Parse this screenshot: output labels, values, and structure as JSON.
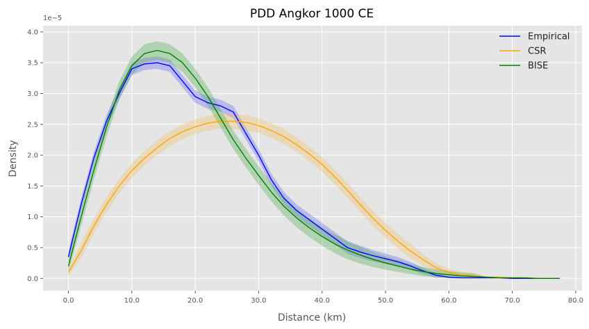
{
  "chart_data": {
    "type": "line",
    "title": "PDD Angkor 1000 CE",
    "xlabel": "Distance (km)",
    "ylabel": "Density",
    "y_offset_label": "1e−5",
    "xlim": [
      -4,
      81
    ],
    "ylim": [
      -0.2,
      4.1
    ],
    "x_ticks": [
      0,
      10,
      20,
      30,
      40,
      50,
      60,
      70,
      80
    ],
    "x_tick_labels": [
      "0.0",
      "10.0",
      "20.0",
      "30.0",
      "40.0",
      "50.0",
      "60.0",
      "70.0",
      "80.0"
    ],
    "y_ticks": [
      0.0,
      0.5,
      1.0,
      1.5,
      2.0,
      2.5,
      3.0,
      3.5,
      4.0
    ],
    "y_tick_labels": [
      "0.0",
      "0.5",
      "1.0",
      "1.5",
      "2.0",
      "2.5",
      "3.0",
      "3.5",
      "4.0"
    ],
    "grid": true,
    "legend_position": "top-right",
    "x": [
      0,
      2,
      4,
      6,
      8,
      10,
      12,
      14,
      16,
      18,
      20,
      22,
      24,
      26,
      28,
      30,
      32,
      34,
      36,
      38,
      40,
      42,
      44,
      46,
      48,
      50,
      52,
      54,
      56,
      58,
      60,
      62,
      64,
      66,
      68,
      70,
      72,
      74,
      76,
      77.5
    ],
    "series": [
      {
        "name": "Empirical",
        "color": "#0000ff",
        "band_color": "#6666ff",
        "values": [
          0.35,
          1.2,
          1.95,
          2.55,
          3.0,
          3.4,
          3.48,
          3.5,
          3.45,
          3.2,
          2.95,
          2.85,
          2.8,
          2.7,
          2.35,
          2.0,
          1.6,
          1.3,
          1.1,
          0.95,
          0.8,
          0.65,
          0.5,
          0.43,
          0.37,
          0.32,
          0.27,
          0.2,
          0.12,
          0.05,
          0.02,
          0.01,
          0.01,
          0.01,
          0.01,
          0.0,
          0.0,
          0.0,
          0.0,
          0.0
        ],
        "band": 0.1
      },
      {
        "name": "CSR",
        "color": "#ffa500",
        "band_color": "#f0c060",
        "values": [
          0.1,
          0.45,
          0.85,
          1.2,
          1.5,
          1.75,
          1.95,
          2.12,
          2.27,
          2.38,
          2.46,
          2.52,
          2.55,
          2.55,
          2.53,
          2.48,
          2.4,
          2.3,
          2.17,
          2.02,
          1.85,
          1.65,
          1.43,
          1.2,
          0.98,
          0.78,
          0.6,
          0.44,
          0.3,
          0.17,
          0.1,
          0.06,
          0.04,
          0.02,
          0.02,
          0.01,
          0.01,
          0.0,
          0.0,
          0.0
        ],
        "band": 0.12
      },
      {
        "name": "BISE",
        "color": "#008000",
        "band_color": "#4caf50",
        "values": [
          0.2,
          1.0,
          1.75,
          2.45,
          3.05,
          3.45,
          3.65,
          3.7,
          3.65,
          3.5,
          3.25,
          2.95,
          2.6,
          2.25,
          1.95,
          1.67,
          1.4,
          1.17,
          0.98,
          0.82,
          0.68,
          0.56,
          0.46,
          0.38,
          0.31,
          0.25,
          0.2,
          0.15,
          0.11,
          0.08,
          0.06,
          0.04,
          0.03,
          0.02,
          0.01,
          0.01,
          0.01,
          0.0,
          0.0,
          0.0
        ],
        "band": 0.15
      }
    ]
  }
}
